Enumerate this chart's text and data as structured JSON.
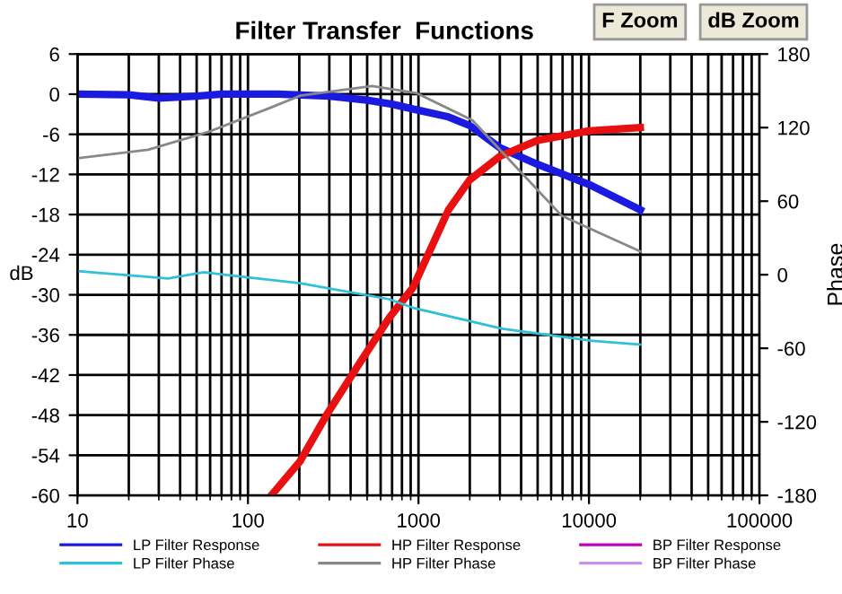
{
  "chart_data": {
    "type": "line",
    "title": "Filter Transfer  Functions",
    "ylabel": "dB",
    "y2label": "Phase",
    "annotations": [
      "F Zoom",
      "dB Zoom"
    ],
    "log": "x",
    "xlim": [
      10,
      100000
    ],
    "xticks": [
      10,
      100,
      1000,
      10000,
      100000
    ],
    "ylim": [
      -60,
      6
    ],
    "yticks": [
      -60,
      -54,
      -48,
      -42,
      -36,
      -30,
      -24,
      -18,
      -12,
      -6,
      0,
      6
    ],
    "y2lim": [
      -180,
      180
    ],
    "y2ticks": [
      -180,
      -120,
      -60,
      0,
      60,
      120,
      180
    ],
    "grid": true,
    "legend": "bottom",
    "marker": "none",
    "line_style": "solid",
    "series": [
      {
        "name": "LP Filter Response",
        "color": "#1a1ae0",
        "x": [
          10,
          20,
          30,
          50,
          70,
          150,
          300,
          500,
          700,
          1000,
          1500,
          2000,
          3000,
          5000,
          10000,
          20000
        ],
        "values": [
          0,
          -0.1,
          -0.6,
          -0.3,
          0,
          0,
          -0.3,
          -0.9,
          -1.5,
          -2.4,
          -3.4,
          -4.7,
          -8,
          -10.5,
          -13.5,
          -17.3
        ]
      },
      {
        "name": "HP Filter Response",
        "color": "#e81010",
        "x": [
          137,
          202,
          295,
          447,
          676,
          930,
          1500,
          2000,
          3000,
          5000,
          10000,
          20000
        ],
        "values": [
          -60,
          -54.9,
          -47.6,
          -40.4,
          -33.4,
          -28.9,
          -17.3,
          -12.8,
          -9.3,
          -6.9,
          -5.5,
          -5
        ]
      },
      {
        "name": "BP Filter Response",
        "color": "#c000c0"
      },
      {
        "name": "LP Filter Phase",
        "color": "#30c0d8",
        "axis": "y2",
        "x": [
          10,
          34,
          55,
          202,
          676,
          930,
          3100,
          10500,
          20000
        ],
        "values": [
          3,
          -3,
          2,
          -7,
          -20,
          -27,
          -44,
          -54,
          -57
        ]
      },
      {
        "name": "HP Filter Phase",
        "color": "#888888",
        "axis": "y2",
        "x": [
          10,
          26,
          60,
          134,
          202,
          534,
          980,
          2070,
          3730,
          6930,
          20000
        ],
        "values": [
          95,
          102,
          117,
          136,
          146,
          154,
          148,
          126,
          88,
          48,
          19
        ]
      },
      {
        "name": "BP Filter Phase",
        "color": "#c890e8",
        "axis": "y2"
      }
    ]
  }
}
